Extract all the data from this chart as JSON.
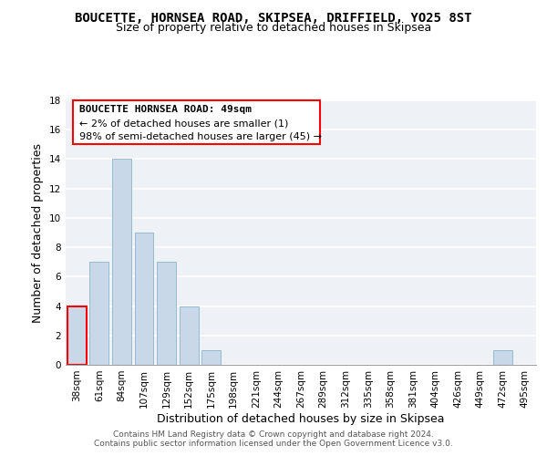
{
  "title": "BOUCETTE, HORNSEA ROAD, SKIPSEA, DRIFFIELD, YO25 8ST",
  "subtitle": "Size of property relative to detached houses in Skipsea",
  "xlabel": "Distribution of detached houses by size in Skipsea",
  "ylabel": "Number of detached properties",
  "bar_color": "#c8d8e8",
  "bar_edge_color": "#8ab4cc",
  "categories": [
    "38sqm",
    "61sqm",
    "84sqm",
    "107sqm",
    "129sqm",
    "152sqm",
    "175sqm",
    "198sqm",
    "221sqm",
    "244sqm",
    "267sqm",
    "289sqm",
    "312sqm",
    "335sqm",
    "358sqm",
    "381sqm",
    "404sqm",
    "426sqm",
    "449sqm",
    "472sqm",
    "495sqm"
  ],
  "values": [
    4,
    7,
    14,
    9,
    7,
    4,
    1,
    0,
    0,
    0,
    0,
    0,
    0,
    0,
    0,
    0,
    0,
    0,
    0,
    1,
    0
  ],
  "ylim": [
    0,
    18
  ],
  "yticks": [
    0,
    2,
    4,
    6,
    8,
    10,
    12,
    14,
    16,
    18
  ],
  "annotation_box_text_line1": "BOUCETTE HORNSEA ROAD: 49sqm",
  "annotation_box_text_line2": "← 2% of detached houses are smaller (1)",
  "annotation_box_text_line3": "98% of semi-detached houses are larger (45) →",
  "annotation_box_color": "white",
  "annotation_box_edge_color": "red",
  "highlight_bar_index": 0,
  "highlight_bar_edge_color": "red",
  "footer_line1": "Contains HM Land Registry data © Crown copyright and database right 2024.",
  "footer_line2": "Contains public sector information licensed under the Open Government Licence v3.0.",
  "background_color": "#eef2f6",
  "grid_color": "white",
  "title_fontsize": 10,
  "subtitle_fontsize": 9,
  "axis_label_fontsize": 9,
  "tick_fontsize": 7.5,
  "annotation_fontsize": 8,
  "footer_fontsize": 6.5
}
